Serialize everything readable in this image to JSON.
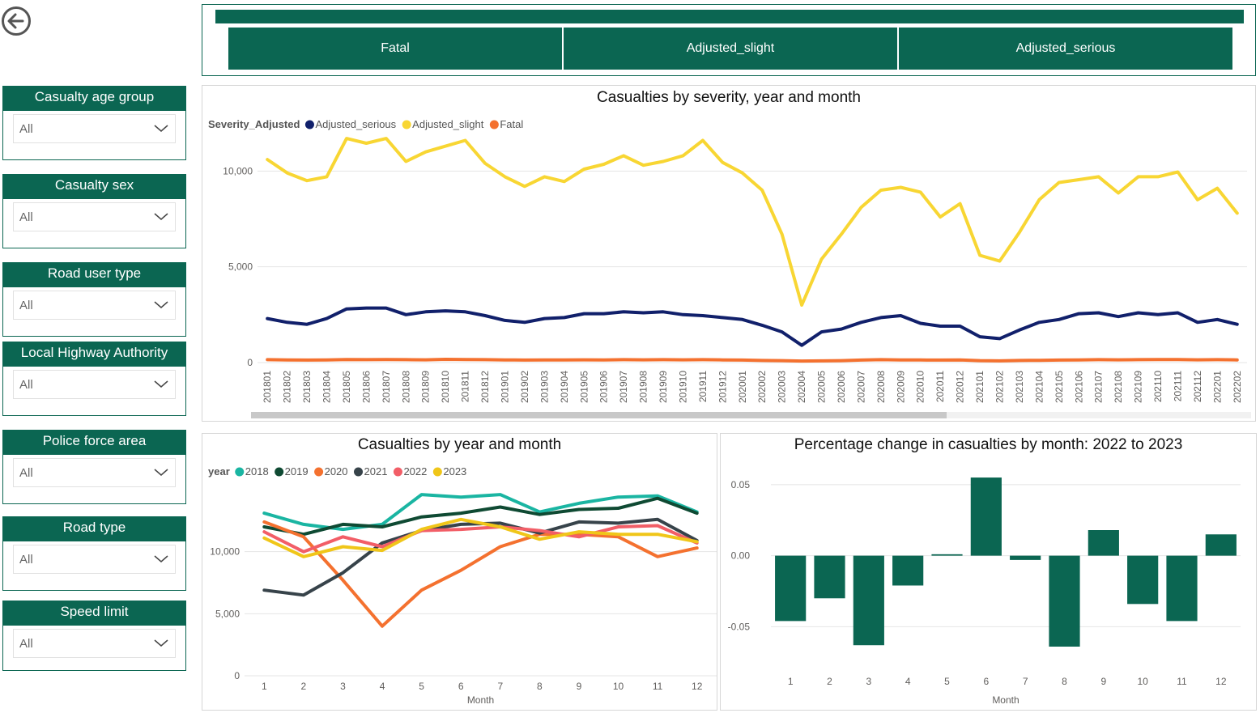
{
  "nav": {
    "back_icon": "arrow-left-circle-icon"
  },
  "severity_buttons": [
    "Fatal",
    "Adjusted_slight",
    "Adjusted_serious"
  ],
  "slicers": [
    {
      "label": "Casualty age group",
      "value": "All"
    },
    {
      "label": "Casualty sex",
      "value": "All"
    },
    {
      "label": "Road user type",
      "value": "All"
    },
    {
      "label": "Local Highway Authority",
      "value": "All"
    },
    {
      "label": "Police force area",
      "value": "All"
    },
    {
      "label": "Road type",
      "value": "All"
    },
    {
      "label": "Speed limit",
      "value": "All"
    }
  ],
  "colors": {
    "brand": "#0b6652",
    "scroll_thumb": "#c8c8c8"
  },
  "chart_data": [
    {
      "type": "line",
      "title": "Casualties by severity, year and month",
      "legend_title": "Severity_Adjusted",
      "ylim": [
        0,
        12000
      ],
      "yticks": [
        0,
        5000,
        10000
      ],
      "ytick_labels": [
        "0",
        "5,000",
        "10,000"
      ],
      "categories": [
        "201801",
        "201802",
        "201803",
        "201804",
        "201805",
        "201806",
        "201807",
        "201808",
        "201809",
        "201810",
        "201811",
        "201812",
        "201901",
        "201902",
        "201903",
        "201904",
        "201905",
        "201906",
        "201907",
        "201908",
        "201909",
        "201910",
        "201911",
        "201912",
        "202001",
        "202002",
        "202003",
        "202004",
        "202005",
        "202006",
        "202007",
        "202008",
        "202009",
        "202010",
        "202011",
        "202012",
        "202101",
        "202102",
        "202103",
        "202104",
        "202105",
        "202106",
        "202107",
        "202108",
        "202109",
        "202110",
        "202111",
        "202112",
        "202201",
        "202202"
      ],
      "series": [
        {
          "name": "Adjusted_serious",
          "color": "#11206b",
          "values": [
            2300,
            2100,
            2000,
            2300,
            2800,
            2850,
            2850,
            2500,
            2650,
            2700,
            2650,
            2450,
            2200,
            2100,
            2300,
            2350,
            2550,
            2550,
            2650,
            2600,
            2650,
            2500,
            2450,
            2350,
            2250,
            1950,
            1600,
            900,
            1600,
            1750,
            2100,
            2350,
            2450,
            2050,
            1900,
            1900,
            1350,
            1250,
            1700,
            2100,
            2250,
            2550,
            2600,
            2400,
            2600,
            2500,
            2600,
            2100,
            2250,
            2000
          ]
        },
        {
          "name": "Adjusted_slight",
          "color": "#f8d633",
          "values": [
            10600,
            9900,
            9500,
            9700,
            11700,
            11450,
            11700,
            10500,
            11000,
            11300,
            11600,
            10400,
            9700,
            9200,
            9700,
            9450,
            10100,
            10350,
            10800,
            10300,
            10500,
            10800,
            11600,
            10450,
            9900,
            9000,
            6700,
            3000,
            5400,
            6700,
            8100,
            9000,
            9150,
            8900,
            7600,
            8300,
            5600,
            5300,
            6800,
            8500,
            9400,
            9550,
            9700,
            8850,
            9700,
            9700,
            9950,
            8500,
            9100,
            7800
          ]
        },
        {
          "name": "Fatal",
          "color": "#f4712f",
          "values": [
            150,
            140,
            130,
            140,
            160,
            150,
            155,
            150,
            145,
            170,
            160,
            150,
            140,
            130,
            140,
            140,
            145,
            140,
            150,
            145,
            150,
            145,
            150,
            140,
            130,
            110,
            100,
            80,
            90,
            100,
            130,
            150,
            140,
            135,
            130,
            140,
            100,
            90,
            110,
            120,
            130,
            140,
            150,
            145,
            150,
            155,
            160,
            145,
            150,
            140
          ]
        }
      ]
    },
    {
      "type": "line",
      "title": "Casualties by year and month",
      "legend_title": "year",
      "xlabel": "Month",
      "ylim": [
        0,
        15000
      ],
      "yticks": [
        0,
        5000,
        10000
      ],
      "ytick_labels": [
        "0",
        "5,000",
        "10,000"
      ],
      "categories": [
        "1",
        "2",
        "3",
        "4",
        "5",
        "6",
        "7",
        "8",
        "9",
        "10",
        "11",
        "12"
      ],
      "series": [
        {
          "name": "2018",
          "color": "#1ab5a2",
          "values": [
            13100,
            12200,
            11800,
            12200,
            14600,
            14400,
            14600,
            13200,
            13900,
            14400,
            14500,
            13200
          ]
        },
        {
          "name": "2019",
          "color": "#0f4a33",
          "values": [
            12000,
            11400,
            12200,
            12000,
            12800,
            13100,
            13600,
            13000,
            13400,
            13500,
            14300,
            13100
          ]
        },
        {
          "name": "2020",
          "color": "#f4712f",
          "values": [
            12400,
            11200,
            7700,
            4000,
            6900,
            8500,
            10400,
            11400,
            11400,
            11200,
            9600,
            10300
          ]
        },
        {
          "name": "2021",
          "color": "#37434a",
          "values": [
            6900,
            6500,
            8300,
            10700,
            11700,
            12200,
            12300,
            11500,
            12400,
            12300,
            12600,
            10900
          ]
        },
        {
          "name": "2022",
          "color": "#f25e67",
          "values": [
            11600,
            10000,
            11200,
            10400,
            11700,
            11800,
            12000,
            11700,
            11200,
            12000,
            12100,
            10700
          ]
        },
        {
          "name": "2023",
          "color": "#f0c619",
          "values": [
            11100,
            9600,
            10400,
            10100,
            11800,
            12600,
            12000,
            11000,
            11600,
            11400,
            11400,
            10800
          ]
        }
      ]
    },
    {
      "type": "bar",
      "title": "Percentage change in casualties by month: 2022 to 2023",
      "xlabel": "Month",
      "ylim": [
        -0.068,
        0.063
      ],
      "yticks": [
        -0.05,
        0.0,
        0.05
      ],
      "ytick_labels": [
        "-0.05",
        "0.00",
        "0.05"
      ],
      "categories": [
        "1",
        "2",
        "3",
        "4",
        "5",
        "6",
        "7",
        "8",
        "9",
        "10",
        "11",
        "12"
      ],
      "values": [
        -0.046,
        -0.03,
        -0.063,
        -0.021,
        0.001,
        0.055,
        -0.003,
        -0.064,
        0.018,
        -0.034,
        -0.046,
        0.015
      ],
      "color": "#0b6652"
    }
  ]
}
